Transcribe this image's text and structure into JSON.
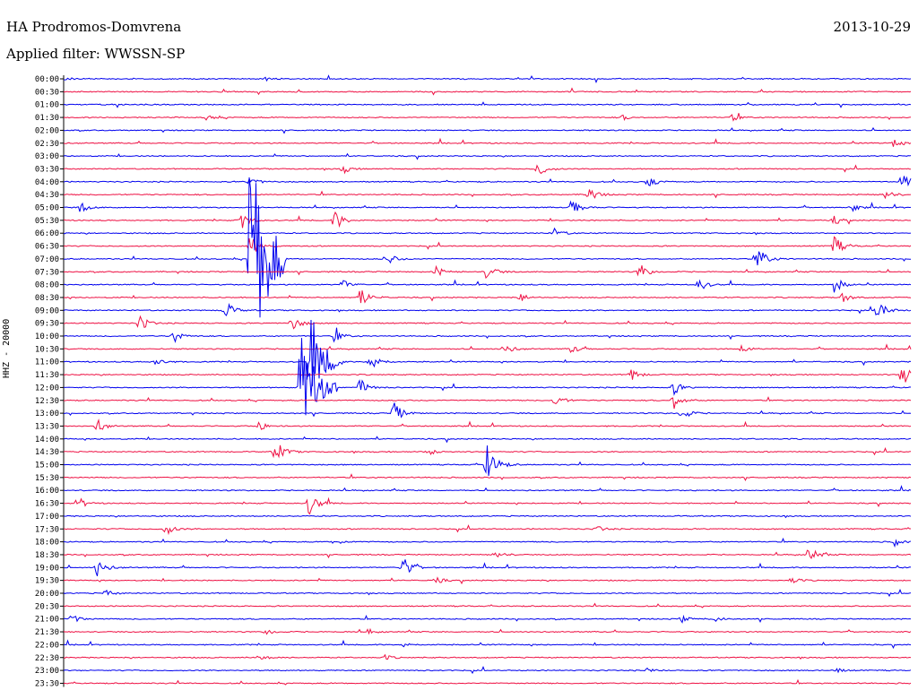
{
  "header": {
    "station": "HA Prodromos-Domvrena",
    "date": "2013-10-29",
    "filter": "Applied filter: WWSSN-SP"
  },
  "chart_data": {
    "type": "line",
    "title": "HA Prodromos-Domvrena",
    "ylabel": "HHZ - 20000",
    "colors": [
      "#0000ee",
      "#ee1144"
    ],
    "series_hint": "helicorder: 48 traces of 30 minutes, alternating blue/red",
    "hours": [
      "00:00",
      "00:30",
      "01:00",
      "01:30",
      "02:00",
      "02:30",
      "03:00",
      "03:30",
      "04:00",
      "04:30",
      "05:00",
      "05:30",
      "06:00",
      "06:30",
      "07:00",
      "07:30",
      "08:00",
      "08:30",
      "09:00",
      "09:30",
      "10:00",
      "10:30",
      "11:00",
      "11:30",
      "12:00",
      "12:30",
      "13:00",
      "13:30",
      "14:00",
      "14:30",
      "15:00",
      "15:30",
      "16:00",
      "16:30",
      "17:00",
      "17:30",
      "18:00",
      "18:30",
      "19:00",
      "19:30",
      "20:00",
      "20:30",
      "21:00",
      "21:30",
      "22:00",
      "22:30",
      "23:00",
      "23:30"
    ],
    "events": [
      {
        "t": "00:00",
        "pos": 0.0,
        "amp": 3
      },
      {
        "t": "00:00",
        "pos": 0.24,
        "amp": 2
      },
      {
        "t": "01:30",
        "pos": 0.17,
        "amp": 4
      },
      {
        "t": "01:30",
        "pos": 0.79,
        "amp": 4
      },
      {
        "t": "01:30",
        "pos": 0.66,
        "amp": 3
      },
      {
        "t": "02:30",
        "pos": 0.98,
        "amp": 5
      },
      {
        "t": "03:30",
        "pos": 0.56,
        "amp": 10
      },
      {
        "t": "03:30",
        "pos": 0.33,
        "amp": 5
      },
      {
        "t": "04:00",
        "pos": 0.69,
        "amp": 8
      },
      {
        "t": "04:00",
        "pos": 0.22,
        "amp": 6
      },
      {
        "t": "04:00",
        "pos": 0.99,
        "amp": 12
      },
      {
        "t": "04:30",
        "pos": 0.62,
        "amp": 10
      },
      {
        "t": "04:30",
        "pos": 0.97,
        "amp": 6
      },
      {
        "t": "05:00",
        "pos": 0.02,
        "amp": 6
      },
      {
        "t": "05:00",
        "pos": 0.6,
        "amp": 12
      },
      {
        "t": "05:00",
        "pos": 0.93,
        "amp": 5
      },
      {
        "t": "05:30",
        "pos": 0.21,
        "amp": 10
      },
      {
        "t": "05:30",
        "pos": 0.32,
        "amp": 12
      },
      {
        "t": "05:30",
        "pos": 0.91,
        "amp": 5
      },
      {
        "t": "06:00",
        "pos": 0.58,
        "amp": 6
      },
      {
        "t": "06:30",
        "pos": 0.22,
        "amp": 14
      },
      {
        "t": "06:30",
        "pos": 0.91,
        "amp": 12
      },
      {
        "t": "07:00",
        "pos": 0.22,
        "amp": 120
      },
      {
        "t": "07:00",
        "pos": 0.38,
        "amp": 10
      },
      {
        "t": "07:00",
        "pos": 0.82,
        "amp": 14
      },
      {
        "t": "07:30",
        "pos": 0.5,
        "amp": 10
      },
      {
        "t": "07:30",
        "pos": 0.68,
        "amp": 10
      },
      {
        "t": "07:30",
        "pos": 0.44,
        "amp": 6
      },
      {
        "t": "08:00",
        "pos": 0.33,
        "amp": 6
      },
      {
        "t": "08:00",
        "pos": 0.75,
        "amp": 8
      },
      {
        "t": "08:00",
        "pos": 0.91,
        "amp": 10
      },
      {
        "t": "08:30",
        "pos": 0.35,
        "amp": 12
      },
      {
        "t": "08:30",
        "pos": 0.54,
        "amp": 5
      },
      {
        "t": "08:30",
        "pos": 0.92,
        "amp": 6
      },
      {
        "t": "09:00",
        "pos": 0.19,
        "amp": 12
      },
      {
        "t": "09:00",
        "pos": 0.96,
        "amp": 14
      },
      {
        "t": "09:30",
        "pos": 0.09,
        "amp": 10
      },
      {
        "t": "09:30",
        "pos": 0.27,
        "amp": 10
      },
      {
        "t": "10:00",
        "pos": 0.13,
        "amp": 8
      },
      {
        "t": "10:00",
        "pos": 0.32,
        "amp": 8
      },
      {
        "t": "10:30",
        "pos": 0.52,
        "amp": 8
      },
      {
        "t": "10:30",
        "pos": 0.6,
        "amp": 6
      },
      {
        "t": "10:30",
        "pos": 0.8,
        "amp": 5
      },
      {
        "t": "11:00",
        "pos": 0.11,
        "amp": 6
      },
      {
        "t": "11:00",
        "pos": 0.29,
        "amp": 60
      },
      {
        "t": "11:00",
        "pos": 0.36,
        "amp": 14
      },
      {
        "t": "11:30",
        "pos": 0.67,
        "amp": 8
      },
      {
        "t": "11:30",
        "pos": 0.99,
        "amp": 14
      },
      {
        "t": "12:00",
        "pos": 0.28,
        "amp": 70
      },
      {
        "t": "12:00",
        "pos": 0.35,
        "amp": 10
      },
      {
        "t": "12:00",
        "pos": 0.72,
        "amp": 8
      },
      {
        "t": "12:30",
        "pos": 0.58,
        "amp": 8
      },
      {
        "t": "12:30",
        "pos": 0.72,
        "amp": 10
      },
      {
        "t": "13:00",
        "pos": 0.39,
        "amp": 12
      },
      {
        "t": "13:00",
        "pos": 0.73,
        "amp": 8
      },
      {
        "t": "13:30",
        "pos": 0.04,
        "amp": 8
      },
      {
        "t": "13:30",
        "pos": 0.23,
        "amp": 6
      },
      {
        "t": "14:30",
        "pos": 0.25,
        "amp": 14
      },
      {
        "t": "14:30",
        "pos": 0.43,
        "amp": 5
      },
      {
        "t": "15:00",
        "pos": 0.5,
        "amp": 22
      },
      {
        "t": "16:30",
        "pos": 0.29,
        "amp": 14
      },
      {
        "t": "16:30",
        "pos": 0.02,
        "amp": 5
      },
      {
        "t": "17:30",
        "pos": 0.12,
        "amp": 8
      },
      {
        "t": "17:30",
        "pos": 0.63,
        "amp": 4
      },
      {
        "t": "18:00",
        "pos": 0.32,
        "amp": 4
      },
      {
        "t": "18:00",
        "pos": 0.98,
        "amp": 5
      },
      {
        "t": "18:30",
        "pos": 0.88,
        "amp": 10
      },
      {
        "t": "18:30",
        "pos": 0.51,
        "amp": 5
      },
      {
        "t": "19:00",
        "pos": 0.04,
        "amp": 12
      },
      {
        "t": "19:00",
        "pos": 0.4,
        "amp": 14
      },
      {
        "t": "19:30",
        "pos": 0.44,
        "amp": 4
      },
      {
        "t": "19:30",
        "pos": 0.86,
        "amp": 4
      },
      {
        "t": "20:00",
        "pos": 0.05,
        "amp": 4
      },
      {
        "t": "21:00",
        "pos": 0.01,
        "amp": 6
      },
      {
        "t": "21:00",
        "pos": 0.73,
        "amp": 4
      },
      {
        "t": "21:00",
        "pos": 0.77,
        "amp": 3
      },
      {
        "t": "21:30",
        "pos": 0.24,
        "amp": 4
      },
      {
        "t": "21:30",
        "pos": 0.36,
        "amp": 3
      },
      {
        "t": "22:00",
        "pos": 0.4,
        "amp": 3
      },
      {
        "t": "22:30",
        "pos": 0.23,
        "amp": 4
      },
      {
        "t": "22:30",
        "pos": 0.38,
        "amp": 3
      },
      {
        "t": "23:00",
        "pos": 0.91,
        "amp": 4
      },
      {
        "t": "23:00",
        "pos": 0.69,
        "amp": 3
      }
    ]
  }
}
